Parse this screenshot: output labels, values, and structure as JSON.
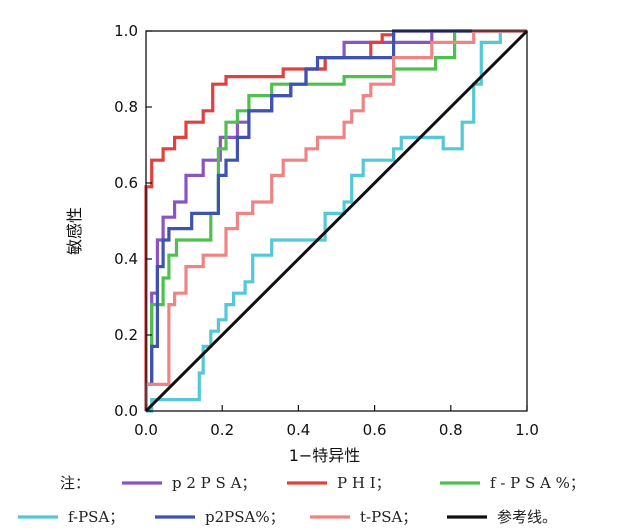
{
  "chart_data": {
    "type": "line",
    "xlabel": "1−特异性",
    "ylabel": "敏感性",
    "xlim": [
      0,
      1
    ],
    "ylim": [
      0,
      1
    ],
    "x_ticks": [
      "0.0",
      "0.2",
      "0.4",
      "0.6",
      "0.8",
      "1.0"
    ],
    "y_ticks": [
      "0.0",
      "0.2",
      "0.4",
      "0.6",
      "0.8",
      "1.0"
    ],
    "grid": false,
    "legend_prefix": "注：",
    "series": [
      {
        "name": "p2PSA",
        "legend_text": "p 2 P S A；",
        "color": "#8a55c0",
        "x": [
          0,
          0,
          0.015,
          0.015,
          0.03,
          0.03,
          0.045,
          0.045,
          0.075,
          0.075,
          0.105,
          0.105,
          0.15,
          0.15,
          0.195,
          0.195,
          0.24,
          0.24,
          0.27,
          0.27,
          0.33,
          0.33,
          0.38,
          0.38,
          0.42,
          0.42,
          0.47,
          0.47,
          0.52,
          0.52,
          0.57,
          0.57,
          0.65,
          0.65,
          0.75,
          0.75,
          0.86,
          0.86,
          1.0
        ],
        "y": [
          0,
          0.07,
          0.07,
          0.31,
          0.31,
          0.45,
          0.45,
          0.51,
          0.51,
          0.55,
          0.55,
          0.62,
          0.62,
          0.66,
          0.66,
          0.72,
          0.72,
          0.76,
          0.76,
          0.79,
          0.79,
          0.83,
          0.83,
          0.86,
          0.86,
          0.9,
          0.9,
          0.93,
          0.93,
          0.97,
          0.97,
          0.97,
          0.97,
          0.97,
          0.97,
          1.0,
          1.0,
          1.0,
          1.0
        ]
      },
      {
        "name": "PHI",
        "legend_text": "P H I；",
        "color": "#e04040",
        "x": [
          0,
          0,
          0.015,
          0.015,
          0.045,
          0.045,
          0.075,
          0.075,
          0.105,
          0.105,
          0.15,
          0.15,
          0.175,
          0.175,
          0.21,
          0.21,
          0.36,
          0.36,
          0.47,
          0.47,
          0.59,
          0.59,
          0.62,
          0.62,
          0.65,
          0.65,
          1.0
        ],
        "y": [
          0,
          0.59,
          0.59,
          0.66,
          0.66,
          0.69,
          0.69,
          0.72,
          0.72,
          0.76,
          0.76,
          0.79,
          0.79,
          0.86,
          0.86,
          0.88,
          0.88,
          0.9,
          0.9,
          0.93,
          0.93,
          0.97,
          0.97,
          0.99,
          0.99,
          1.0,
          1.0
        ]
      },
      {
        "name": "f-PSA%",
        "legend_text": "f - P S A %；",
        "color": "#4fc04f",
        "x": [
          0,
          0,
          0.015,
          0.015,
          0.045,
          0.045,
          0.06,
          0.06,
          0.08,
          0.08,
          0.17,
          0.17,
          0.19,
          0.19,
          0.21,
          0.21,
          0.24,
          0.24,
          0.27,
          0.27,
          0.33,
          0.33,
          0.52,
          0.52,
          0.65,
          0.65,
          0.76,
          0.76,
          0.81,
          0.81,
          1.0
        ],
        "y": [
          0,
          0.07,
          0.07,
          0.28,
          0.28,
          0.35,
          0.35,
          0.41,
          0.41,
          0.45,
          0.45,
          0.52,
          0.52,
          0.69,
          0.69,
          0.76,
          0.76,
          0.79,
          0.79,
          0.83,
          0.83,
          0.86,
          0.86,
          0.88,
          0.88,
          0.9,
          0.9,
          0.93,
          0.93,
          1.0,
          1.0
        ]
      },
      {
        "name": "f-PSA",
        "legend_text": "f-PSA；",
        "color": "#55c8d8",
        "x": [
          0,
          0.015,
          0.015,
          0.14,
          0.14,
          0.15,
          0.15,
          0.17,
          0.17,
          0.19,
          0.19,
          0.21,
          0.21,
          0.23,
          0.23,
          0.26,
          0.26,
          0.28,
          0.28,
          0.33,
          0.33,
          0.47,
          0.47,
          0.52,
          0.52,
          0.54,
          0.54,
          0.57,
          0.57,
          0.65,
          0.65,
          0.67,
          0.67,
          0.78,
          0.78,
          0.83,
          0.83,
          0.86,
          0.86,
          0.88,
          0.88,
          0.93,
          0.93,
          1.0
        ],
        "y": [
          0,
          0,
          0.03,
          0.03,
          0.1,
          0.1,
          0.17,
          0.17,
          0.21,
          0.21,
          0.24,
          0.24,
          0.28,
          0.28,
          0.31,
          0.31,
          0.34,
          0.34,
          0.41,
          0.41,
          0.45,
          0.45,
          0.52,
          0.52,
          0.55,
          0.55,
          0.62,
          0.62,
          0.66,
          0.66,
          0.69,
          0.69,
          0.72,
          0.72,
          0.69,
          0.69,
          0.76,
          0.76,
          0.86,
          0.86,
          0.97,
          0.97,
          1.0,
          1.0
        ]
      },
      {
        "name": "p2PSA%",
        "legend_text": "p2PSA%；",
        "color": "#3e52b0",
        "x": [
          0,
          0,
          0.015,
          0.015,
          0.03,
          0.03,
          0.045,
          0.045,
          0.06,
          0.06,
          0.12,
          0.12,
          0.19,
          0.19,
          0.21,
          0.21,
          0.24,
          0.24,
          0.27,
          0.27,
          0.33,
          0.33,
          0.38,
          0.38,
          0.42,
          0.42,
          0.45,
          0.45,
          0.65,
          0.65,
          1.0
        ],
        "y": [
          0,
          0.07,
          0.07,
          0.17,
          0.17,
          0.38,
          0.38,
          0.45,
          0.45,
          0.48,
          0.48,
          0.52,
          0.52,
          0.62,
          0.62,
          0.66,
          0.66,
          0.72,
          0.72,
          0.79,
          0.79,
          0.83,
          0.83,
          0.86,
          0.86,
          0.9,
          0.9,
          0.93,
          0.93,
          1.0,
          1.0
        ]
      },
      {
        "name": "t-PSA",
        "legend_text": "t-PSA；",
        "color": "#ee8484",
        "x": [
          0,
          0,
          0.015,
          0.015,
          0.06,
          0.06,
          0.075,
          0.075,
          0.105,
          0.105,
          0.15,
          0.15,
          0.21,
          0.21,
          0.24,
          0.24,
          0.28,
          0.28,
          0.33,
          0.33,
          0.36,
          0.36,
          0.42,
          0.42,
          0.45,
          0.45,
          0.52,
          0.52,
          0.54,
          0.54,
          0.57,
          0.57,
          0.59,
          0.59,
          0.65,
          0.65,
          0.75,
          0.75,
          0.86,
          0.86,
          1.0
        ],
        "y": [
          0,
          0.07,
          0.07,
          0.07,
          0.07,
          0.28,
          0.28,
          0.31,
          0.31,
          0.38,
          0.38,
          0.41,
          0.41,
          0.48,
          0.48,
          0.52,
          0.52,
          0.55,
          0.55,
          0.62,
          0.62,
          0.66,
          0.66,
          0.69,
          0.69,
          0.72,
          0.72,
          0.76,
          0.76,
          0.79,
          0.79,
          0.83,
          0.83,
          0.86,
          0.86,
          0.93,
          0.93,
          0.97,
          0.97,
          1.0,
          1.0
        ]
      },
      {
        "name": "参考线",
        "legend_text": "参考线。",
        "color": "#111111",
        "x": [
          0,
          1.0
        ],
        "y": [
          0,
          1.0
        ]
      }
    ]
  }
}
